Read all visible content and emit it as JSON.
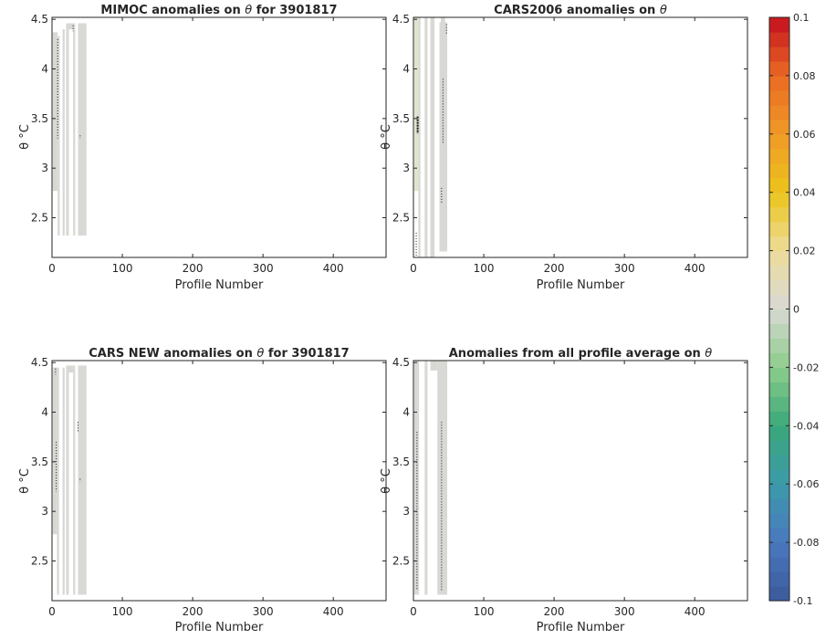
{
  "chart_data": [
    {
      "type": "heatmap",
      "title_html": "MIMOC anomalies on θ  for 3901817",
      "title_parts": [
        "MIMOC anomalies on ",
        "θ",
        "  for 3901817"
      ],
      "xlabel": "Profile Number",
      "ylabel": "θ °C",
      "xlim": [
        0,
        475
      ],
      "ylim": [
        2.1,
        4.52
      ],
      "xticks": [
        0,
        100,
        200,
        300,
        400
      ],
      "yticks": [
        2.5,
        3,
        3.5,
        4,
        4.5
      ],
      "columns": [
        {
          "x0": 1,
          "x1": 8,
          "ytop": 4.37,
          "ybot": 2.77
        },
        {
          "x0": 8,
          "x1": 11,
          "ytop": 4.33,
          "ybot": 2.32
        },
        {
          "x0": 15,
          "x1": 18,
          "ytop": 4.4,
          "ybot": 2.32
        },
        {
          "x0": 20,
          "x1": 24,
          "ytop": 4.46,
          "ybot": 2.32
        },
        {
          "x0": 24,
          "x1": 30,
          "ytop": 4.46,
          "ybot": 4.4
        },
        {
          "x0": 30,
          "x1": 33,
          "ytop": 4.46,
          "ybot": 2.32
        },
        {
          "x0": 37,
          "x1": 49,
          "ytop": 4.46,
          "ybot": 2.32
        }
      ],
      "dots": [
        {
          "x": 8,
          "y0": 3.3,
          "y1": 4.3
        },
        {
          "x": 30,
          "y0": 4.38,
          "y1": 4.44
        },
        {
          "x": 40,
          "y0": 3.3,
          "y1": 3.33
        }
      ]
    },
    {
      "type": "heatmap",
      "title_parts": [
        "CARS2006 anomalies on ",
        "θ",
        ""
      ],
      "xlabel": "Profile Number",
      "ylabel": "θ °C",
      "xlim": [
        0,
        475
      ],
      "ylim": [
        2.1,
        4.52
      ],
      "xticks": [
        0,
        100,
        200,
        300,
        400
      ],
      "yticks": [
        2.5,
        3,
        3.5,
        4,
        4.5
      ],
      "columns": [
        {
          "x0": 1,
          "x1": 7,
          "ytop": 4.52,
          "ybot": 2.77,
          "tint": "green"
        },
        {
          "x0": 7,
          "x1": 10,
          "ytop": 4.52,
          "ybot": 2.1
        },
        {
          "x0": 16,
          "x1": 20,
          "ytop": 4.52,
          "ybot": 2.1
        },
        {
          "x0": 24,
          "x1": 30,
          "ytop": 4.52,
          "ybot": 2.1
        },
        {
          "x0": 37,
          "x1": 48,
          "ytop": 4.47,
          "ybot": 2.16
        },
        {
          "x0": 39,
          "x1": 45,
          "ytop": 4.52,
          "ybot": 4.45
        }
      ],
      "dots": [
        {
          "x": 6,
          "y0": 3.35,
          "y1": 3.52,
          "heavy": true
        },
        {
          "x": 40,
          "y0": 2.65,
          "y1": 2.8
        },
        {
          "x": 42,
          "y0": 3.25,
          "y1": 3.9
        },
        {
          "x": 47,
          "y0": 4.35,
          "y1": 4.45
        },
        {
          "x": 4,
          "y0": 2.12,
          "y1": 2.35
        }
      ]
    },
    {
      "type": "heatmap",
      "title_parts": [
        "CARS NEW anomalies on ",
        "θ",
        " for 3901817"
      ],
      "xlabel": "Profile Number",
      "ylabel": "θ °C",
      "xlim": [
        0,
        475
      ],
      "ylim": [
        2.1,
        4.52
      ],
      "xticks": [
        0,
        100,
        200,
        300,
        400
      ],
      "yticks": [
        2.5,
        3,
        3.5,
        4,
        4.5
      ],
      "columns": [
        {
          "x0": 1,
          "x1": 7,
          "ytop": 4.45,
          "ybot": 2.77
        },
        {
          "x0": 7,
          "x1": 10,
          "ytop": 4.45,
          "ybot": 2.16
        },
        {
          "x0": 15,
          "x1": 18,
          "ytop": 4.45,
          "ybot": 2.16
        },
        {
          "x0": 20,
          "x1": 24,
          "ytop": 4.47,
          "ybot": 2.16
        },
        {
          "x0": 24,
          "x1": 30,
          "ytop": 4.47,
          "ybot": 4.4
        },
        {
          "x0": 30,
          "x1": 33,
          "ytop": 4.47,
          "ybot": 2.16
        },
        {
          "x0": 37,
          "x1": 49,
          "ytop": 4.47,
          "ybot": 2.16
        }
      ],
      "dots": [
        {
          "x": 6,
          "y0": 3.2,
          "y1": 3.7
        },
        {
          "x": 5,
          "y0": 4.38,
          "y1": 4.44
        },
        {
          "x": 37,
          "y0": 3.8,
          "y1": 3.9
        },
        {
          "x": 40,
          "y0": 3.3,
          "y1": 3.33
        }
      ]
    },
    {
      "type": "heatmap",
      "title_parts": [
        "Anomalies from all profile average on ",
        "θ",
        ""
      ],
      "xlabel": "Profile Number",
      "ylabel": "θ °C",
      "xlim": [
        0,
        475
      ],
      "ylim": [
        2.1,
        4.52
      ],
      "xticks": [
        0,
        100,
        200,
        300,
        400
      ],
      "yticks": [
        2.5,
        3,
        3.5,
        4,
        4.5
      ],
      "columns": [
        {
          "x0": 1,
          "x1": 8,
          "ytop": 4.52,
          "ybot": 2.16
        },
        {
          "x0": 16,
          "x1": 20,
          "ytop": 4.52,
          "ybot": 2.16
        },
        {
          "x0": 24,
          "x1": 34,
          "ytop": 4.52,
          "ybot": 4.42
        },
        {
          "x0": 34,
          "x1": 37,
          "ytop": 4.52,
          "ybot": 2.16
        },
        {
          "x0": 37,
          "x1": 48,
          "ytop": 4.52,
          "ybot": 2.16
        }
      ],
      "dots": [
        {
          "x": 5,
          "y0": 2.2,
          "y1": 3.8
        },
        {
          "x": 40,
          "y0": 2.2,
          "y1": 3.9
        }
      ]
    }
  ],
  "colorbar": {
    "min": -0.1,
    "max": 0.1,
    "tick_labels": [
      "0.1",
      "0.08",
      "0.06",
      "0.04",
      "0.02",
      "0",
      "-0.02",
      "-0.04",
      "-0.06",
      "-0.08",
      "-0.1"
    ],
    "colors": {
      "n10": "#3a5a9a",
      "n08": "#4a78bf",
      "n06": "#3c9aaa",
      "n04": "#3aa87a",
      "n02": "#8ccc8a",
      "z0": "#d8d8d4",
      "p02": "#ecdc9a",
      "p04": "#ecc41a",
      "p06": "#f09a28",
      "p08": "#ea6a22",
      "p10": "#c4101e"
    }
  },
  "column_fill": "#d8d8d4",
  "column_green": "#dce6cc"
}
